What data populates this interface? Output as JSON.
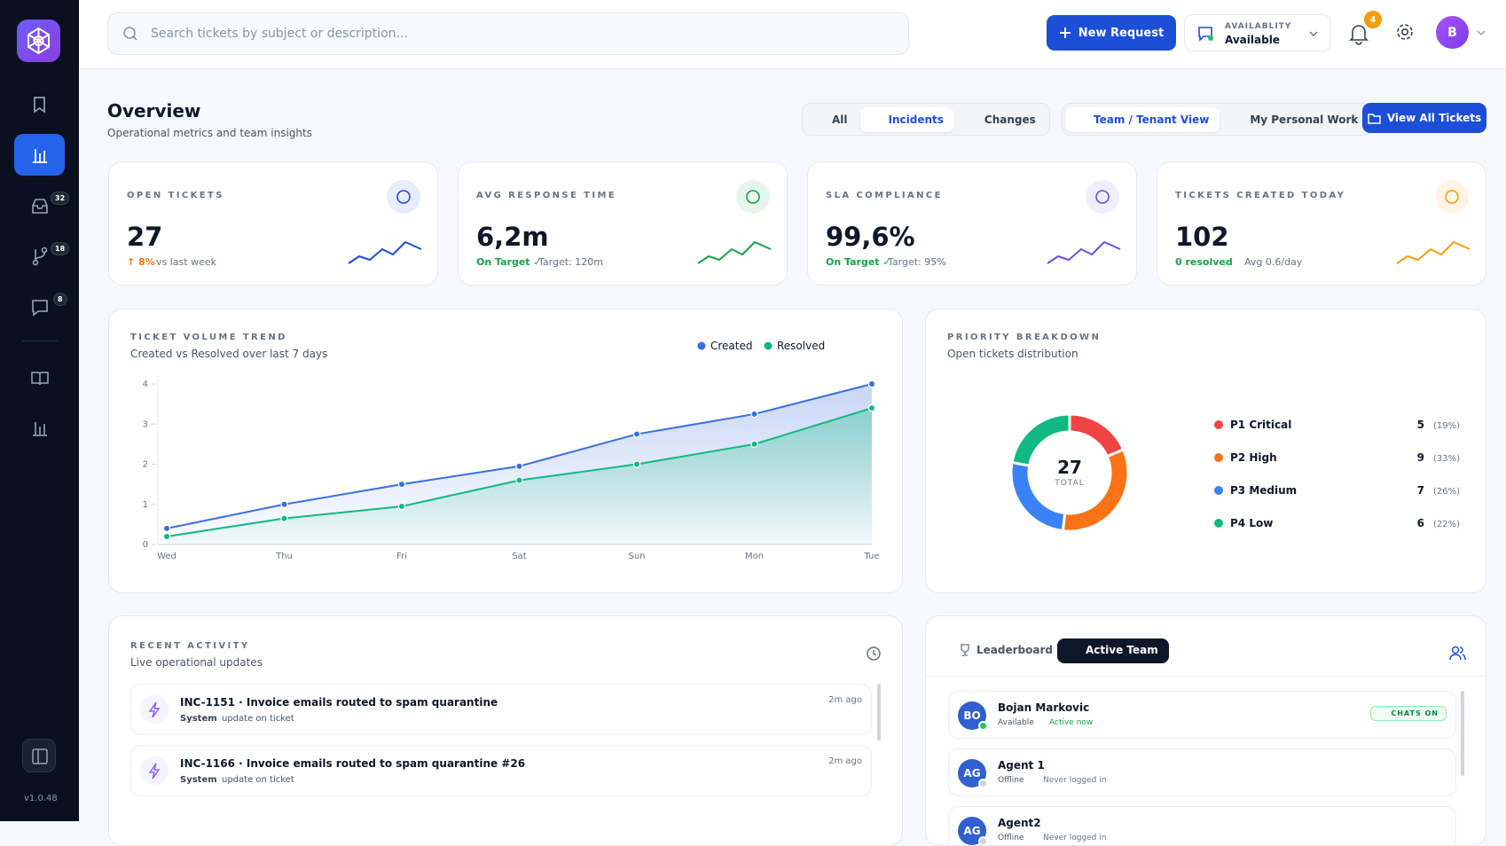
{
  "sidebar": {
    "badges": [
      "32",
      "18",
      "8"
    ],
    "version": "v1.0.48"
  },
  "header": {
    "search_placeholder": "Search tickets by subject or description...",
    "new_request": "New Request",
    "availability_label": "AVAILABLITY",
    "availability_value": "Available",
    "notifications": "4",
    "avatar": "B"
  },
  "overview": {
    "title": "Overview",
    "subtitle": "Operational metrics and team insights",
    "filters": [
      "All",
      "Incidents",
      "Changes"
    ],
    "views": [
      "Team / Tenant View",
      "My Personal Work"
    ],
    "view_all": "View All Tickets"
  },
  "kpis": [
    {
      "label": "OPEN TICKETS",
      "value": "27",
      "status": "↑ 8%",
      "note": "vs last week",
      "color": "#1d4ed8",
      "status_color": "#f97316"
    },
    {
      "label": "AVG RESPONSE TIME",
      "value": "6,2m",
      "status": "On Target ✓",
      "note": "Target: 120m",
      "color": "#16a34a",
      "status_color": "#16a34a"
    },
    {
      "label": "SLA COMPLIANCE",
      "value": "99,6%",
      "status": "On Target ✓",
      "note": "Target: 95%",
      "color": "#6d4fe0",
      "status_color": "#16a34a"
    },
    {
      "label": "TICKETS CREATED TODAY",
      "value": "102",
      "status": "0 resolved",
      "note": "Avg 0.6/day",
      "color": "#f59e0b",
      "status_color": "#16a34a"
    }
  ],
  "trend": {
    "type": "line",
    "title": "TICKET VOLUME TREND",
    "subtitle": "Created vs Resolved over last 7 days",
    "categories": [
      "Wed",
      "Thu",
      "Fri",
      "Sat",
      "Sun",
      "Mon",
      "Tue"
    ],
    "series": [
      {
        "name": "Created",
        "color": "#3b6fe0",
        "values": [
          0.4,
          1,
          1.5,
          1.95,
          2.75,
          3.25,
          4
        ]
      },
      {
        "name": "Resolved",
        "color": "#10b981",
        "values": [
          0.2,
          0.65,
          0.95,
          1.6,
          2,
          2.5,
          3.4
        ]
      }
    ],
    "ylim": [
      0,
      4
    ],
    "yticks": [
      0,
      1,
      2,
      3,
      4
    ]
  },
  "priority": {
    "type": "pie",
    "title": "PRIORITY BREAKDOWN",
    "subtitle": "Open tickets distribution",
    "center_value": "27",
    "center_label": "TOTAL",
    "categories": [
      "P1 Critical",
      "P2 High",
      "P3 Medium",
      "P4 Low"
    ],
    "values": [
      5,
      9,
      7,
      6
    ],
    "value_labels": [
      "(19%)",
      "(33%)",
      "(26%)",
      "(22%)"
    ],
    "colors": [
      "#ef4444",
      "#f97316",
      "#3b82f6",
      "#10b981"
    ]
  },
  "activity": {
    "title": "RECENT ACTIVITY",
    "subtitle": "Live operational updates",
    "items": [
      {
        "title": "INC-1151 · Invoice emails routed to spam quarantine",
        "actor": "System",
        "text": "update on ticket",
        "time": "2m ago"
      },
      {
        "title": "INC-1166 · Invoice emails routed to spam quarantine #26",
        "actor": "System",
        "text": "update on ticket",
        "time": "2m ago"
      }
    ]
  },
  "team": {
    "tabs": [
      "Leaderboard",
      "Active Team"
    ],
    "members": [
      {
        "initials": "BO",
        "name": "Bojan Markovic",
        "status": "Available",
        "activity": "Active now",
        "badge": "CHATS ON",
        "online": true
      },
      {
        "initials": "AG",
        "name": "Agent 1",
        "status": "Offline",
        "activity": "Never logged in",
        "online": false
      },
      {
        "initials": "AG",
        "name": "Agent2",
        "status": "Offline",
        "activity": "Never logged in",
        "online": false
      }
    ]
  }
}
